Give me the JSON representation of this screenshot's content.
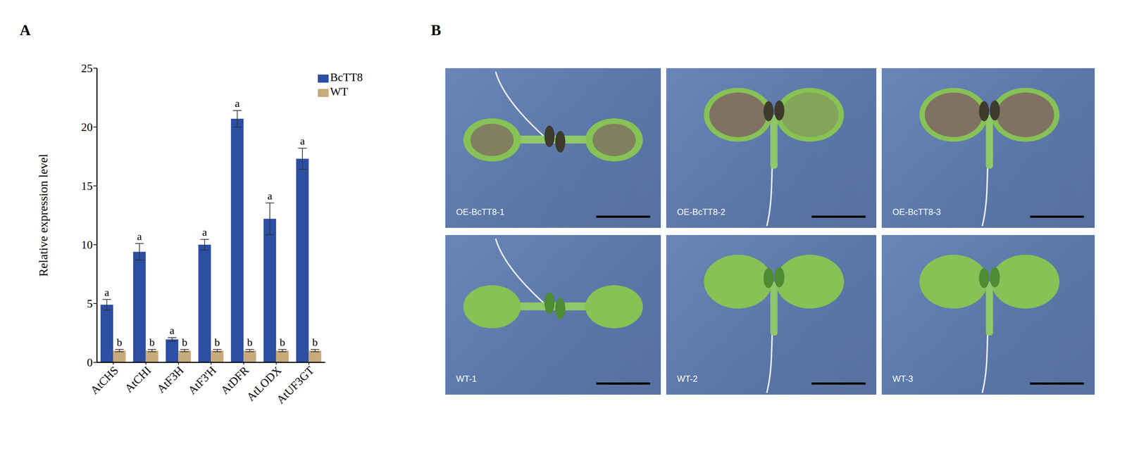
{
  "chart_data": {
    "type": "bar",
    "categories": [
      "AtCHS",
      "AtCHI",
      "AtF3H",
      "AtF3'H",
      "AtDFR",
      "AtLODX",
      "AtUF3GT"
    ],
    "series": [
      {
        "name": "BcTT8",
        "color": "#2c4fa3",
        "values": [
          4.9,
          9.4,
          1.95,
          10.0,
          20.7,
          12.2,
          17.3
        ],
        "errors": [
          0.45,
          0.7,
          0.15,
          0.45,
          0.7,
          1.35,
          0.9
        ],
        "letters": [
          "a",
          "a",
          "a",
          "a",
          "a",
          "a",
          "a"
        ]
      },
      {
        "name": "WT",
        "color": "#c9aa7c",
        "values": [
          1,
          1,
          1,
          1,
          1,
          1,
          1
        ],
        "errors": [
          0.1,
          0.1,
          0.1,
          0.1,
          0.1,
          0.1,
          0.1
        ],
        "letters": [
          "b",
          "b",
          "b",
          "b",
          "b",
          "b",
          "b"
        ]
      }
    ],
    "ylabel": "Relative expression level",
    "ylim": [
      0,
      25
    ],
    "yticks": [
      0,
      5,
      10,
      15,
      20,
      25
    ],
    "grid": false,
    "legend": "upper right"
  },
  "panel_labels": [
    "A",
    "B"
  ],
  "images": {
    "labels": [
      "OE-BcTT8-1",
      "OE-BcTT8-2",
      "OE-BcTT8-3",
      "WT-1",
      "WT-2",
      "WT-3"
    ]
  }
}
